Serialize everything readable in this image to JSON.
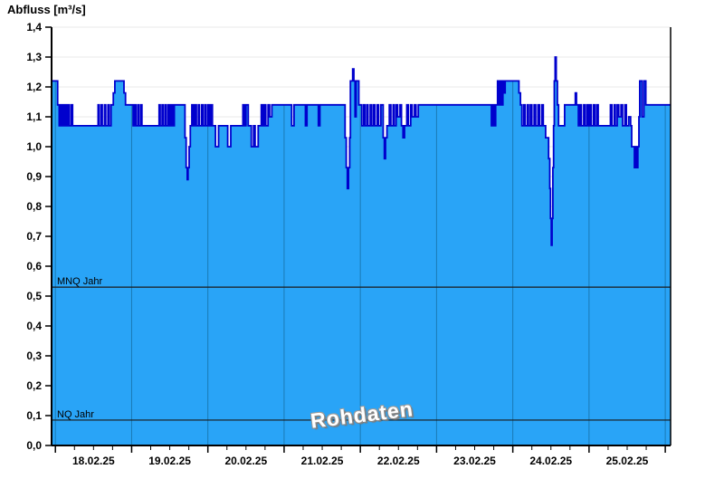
{
  "header": {
    "title": "Abfluss [m³/s]"
  },
  "watermark": {
    "text": "Rohdaten"
  },
  "colors": {
    "area_fill": "#29a4f7",
    "series_line": "#0000cd",
    "day_separator": "#1a7ab5",
    "gridline": "#e9e9e9",
    "axis": "#000000",
    "reference_line": "#1a1a1a",
    "tick_label": "#000000"
  },
  "chart_data": {
    "type": "area",
    "title": "Abfluss [m³/s]",
    "ylabel": "Abfluss [m³/s]",
    "unit": "m³/s",
    "ylim": [
      0,
      1.4
    ],
    "grid": "horizontal-only",
    "y_tick_values": [
      0,
      0.1,
      0.2,
      0.3,
      0.4,
      0.5,
      0.6,
      0.7,
      0.8,
      0.9,
      1.0,
      1.1,
      1.2,
      1.3,
      1.4
    ],
    "y_tick_labels": [
      "0,0",
      "0,1",
      "0,2",
      "0,3",
      "0,4",
      "0,5",
      "0,6",
      "0,7",
      "0,8",
      "0,9",
      "1,0",
      "1,1",
      "1,2",
      "1,3",
      "1,4"
    ],
    "x_axis": {
      "tick_labels": [
        "18.02.25",
        "19.02.25",
        "20.02.25",
        "21.02.25",
        "22.02.25",
        "23.02.25",
        "24.02.25",
        "25.02.25"
      ],
      "days": 8,
      "minor_ticks_per_day": 4,
      "range_days": [
        -0.05,
        8.07
      ]
    },
    "reference_lines": [
      {
        "label": "MNQ Jahr",
        "value": 0.53
      },
      {
        "label": "NQ Jahr",
        "value": 0.085
      }
    ],
    "series": [
      {
        "name": "Abfluss Rohdaten",
        "points": [
          [
            -0.05,
            1.22
          ],
          [
            0.03,
            1.14
          ],
          [
            0.05,
            1.07
          ],
          [
            0.07,
            1.14
          ],
          [
            0.085,
            1.07
          ],
          [
            0.1,
            1.14
          ],
          [
            0.115,
            1.07
          ],
          [
            0.135,
            1.14
          ],
          [
            0.15,
            1.07
          ],
          [
            0.17,
            1.14
          ],
          [
            0.185,
            1.07
          ],
          [
            0.21,
            1.14
          ],
          [
            0.225,
            1.07
          ],
          [
            0.56,
            1.14
          ],
          [
            0.575,
            1.07
          ],
          [
            0.6,
            1.14
          ],
          [
            0.615,
            1.07
          ],
          [
            0.645,
            1.14
          ],
          [
            0.66,
            1.07
          ],
          [
            0.69,
            1.14
          ],
          [
            0.705,
            1.07
          ],
          [
            0.73,
            1.14
          ],
          [
            0.76,
            1.18
          ],
          [
            0.78,
            1.22
          ],
          [
            0.9,
            1.18
          ],
          [
            0.92,
            1.14
          ],
          [
            1.02,
            1.07
          ],
          [
            1.04,
            1.14
          ],
          [
            1.055,
            1.07
          ],
          [
            1.08,
            1.14
          ],
          [
            1.095,
            1.07
          ],
          [
            1.12,
            1.14
          ],
          [
            1.135,
            1.07
          ],
          [
            1.36,
            1.14
          ],
          [
            1.375,
            1.07
          ],
          [
            1.4,
            1.14
          ],
          [
            1.415,
            1.07
          ],
          [
            1.44,
            1.14
          ],
          [
            1.455,
            1.07
          ],
          [
            1.48,
            1.14
          ],
          [
            1.5,
            1.07
          ],
          [
            1.52,
            1.14
          ],
          [
            1.54,
            1.07
          ],
          [
            1.56,
            1.14
          ],
          [
            1.7,
            1.03
          ],
          [
            1.715,
            0.93
          ],
          [
            1.73,
            0.89
          ],
          [
            1.74,
            0.93
          ],
          [
            1.755,
            1.0
          ],
          [
            1.77,
            1.07
          ],
          [
            1.79,
            1.14
          ],
          [
            1.81,
            1.07
          ],
          [
            1.83,
            1.14
          ],
          [
            1.85,
            1.07
          ],
          [
            1.875,
            1.14
          ],
          [
            1.89,
            1.07
          ],
          [
            1.92,
            1.14
          ],
          [
            1.935,
            1.07
          ],
          [
            1.96,
            1.14
          ],
          [
            1.975,
            1.07
          ],
          [
            2.0,
            1.14
          ],
          [
            2.02,
            1.07
          ],
          [
            2.04,
            1.14
          ],
          [
            2.06,
            1.07
          ],
          [
            2.1,
            1.0
          ],
          [
            2.14,
            1.07
          ],
          [
            2.26,
            1.0
          ],
          [
            2.3,
            1.07
          ],
          [
            2.46,
            1.14
          ],
          [
            2.48,
            1.07
          ],
          [
            2.5,
            1.14
          ],
          [
            2.53,
            1.07
          ],
          [
            2.57,
            1.0
          ],
          [
            2.6,
            1.07
          ],
          [
            2.62,
            1.0
          ],
          [
            2.66,
            1.07
          ],
          [
            2.7,
            1.14
          ],
          [
            2.72,
            1.07
          ],
          [
            2.74,
            1.14
          ],
          [
            2.76,
            1.07
          ],
          [
            2.79,
            1.14
          ],
          [
            2.81,
            1.1
          ],
          [
            2.84,
            1.14
          ],
          [
            3.1,
            1.07
          ],
          [
            3.13,
            1.14
          ],
          [
            3.28,
            1.07
          ],
          [
            3.3,
            1.14
          ],
          [
            3.45,
            1.07
          ],
          [
            3.47,
            1.14
          ],
          [
            3.8,
            1.03
          ],
          [
            3.815,
            0.93
          ],
          [
            3.83,
            0.86
          ],
          [
            3.845,
            0.93
          ],
          [
            3.86,
            1.03
          ],
          [
            3.87,
            1.22
          ],
          [
            3.9,
            1.26
          ],
          [
            3.915,
            1.22
          ],
          [
            3.93,
            1.1
          ],
          [
            3.945,
            1.22
          ],
          [
            3.98,
            1.14
          ],
          [
            4.02,
            1.07
          ],
          [
            4.045,
            1.14
          ],
          [
            4.06,
            1.07
          ],
          [
            4.085,
            1.14
          ],
          [
            4.1,
            1.07
          ],
          [
            4.13,
            1.14
          ],
          [
            4.145,
            1.07
          ],
          [
            4.17,
            1.14
          ],
          [
            4.19,
            1.07
          ],
          [
            4.22,
            1.14
          ],
          [
            4.24,
            1.07
          ],
          [
            4.27,
            1.14
          ],
          [
            4.3,
            1.03
          ],
          [
            4.315,
            0.96
          ],
          [
            4.33,
            1.03
          ],
          [
            4.35,
            1.07
          ],
          [
            4.38,
            1.14
          ],
          [
            4.4,
            1.07
          ],
          [
            4.43,
            1.14
          ],
          [
            4.445,
            1.07
          ],
          [
            4.47,
            1.14
          ],
          [
            4.49,
            1.1
          ],
          [
            4.52,
            1.14
          ],
          [
            4.54,
            1.07
          ],
          [
            4.56,
            1.03
          ],
          [
            4.58,
            1.07
          ],
          [
            4.61,
            1.14
          ],
          [
            4.63,
            1.07
          ],
          [
            4.66,
            1.14
          ],
          [
            4.68,
            1.1
          ],
          [
            4.71,
            1.14
          ],
          [
            4.73,
            1.1
          ],
          [
            4.76,
            1.14
          ],
          [
            5.72,
            1.07
          ],
          [
            5.735,
            1.14
          ],
          [
            5.755,
            1.07
          ],
          [
            5.775,
            1.14
          ],
          [
            5.8,
            1.22
          ],
          [
            5.815,
            1.14
          ],
          [
            5.835,
            1.22
          ],
          [
            5.85,
            1.14
          ],
          [
            5.87,
            1.22
          ],
          [
            5.885,
            1.18
          ],
          [
            5.9,
            1.22
          ],
          [
            6.08,
            1.18
          ],
          [
            6.1,
            1.14
          ],
          [
            6.12,
            1.07
          ],
          [
            6.145,
            1.14
          ],
          [
            6.16,
            1.07
          ],
          [
            6.19,
            1.14
          ],
          [
            6.205,
            1.07
          ],
          [
            6.23,
            1.14
          ],
          [
            6.25,
            1.07
          ],
          [
            6.28,
            1.14
          ],
          [
            6.3,
            1.07
          ],
          [
            6.33,
            1.14
          ],
          [
            6.35,
            1.07
          ],
          [
            6.38,
            1.14
          ],
          [
            6.4,
            1.07
          ],
          [
            6.43,
            1.03
          ],
          [
            6.47,
            0.96
          ],
          [
            6.485,
            0.86
          ],
          [
            6.495,
            0.76
          ],
          [
            6.505,
            0.67
          ],
          [
            6.515,
            0.76
          ],
          [
            6.525,
            0.93
          ],
          [
            6.535,
            1.07
          ],
          [
            6.545,
            1.22
          ],
          [
            6.555,
            1.3
          ],
          [
            6.57,
            1.22
          ],
          [
            6.585,
            1.14
          ],
          [
            6.6,
            1.07
          ],
          [
            6.68,
            1.14
          ],
          [
            6.82,
            1.18
          ],
          [
            6.835,
            1.14
          ],
          [
            6.86,
            1.07
          ],
          [
            6.88,
            1.14
          ],
          [
            6.9,
            1.07
          ],
          [
            6.93,
            1.14
          ],
          [
            6.945,
            1.07
          ],
          [
            6.97,
            1.14
          ],
          [
            6.99,
            1.07
          ],
          [
            7.01,
            1.14
          ],
          [
            7.03,
            1.07
          ],
          [
            7.06,
            1.14
          ],
          [
            7.075,
            1.07
          ],
          [
            7.1,
            1.14
          ],
          [
            7.12,
            1.07
          ],
          [
            7.28,
            1.14
          ],
          [
            7.3,
            1.07
          ],
          [
            7.33,
            1.14
          ],
          [
            7.345,
            1.07
          ],
          [
            7.37,
            1.14
          ],
          [
            7.39,
            1.1
          ],
          [
            7.42,
            1.14
          ],
          [
            7.44,
            1.07
          ],
          [
            7.47,
            1.14
          ],
          [
            7.49,
            1.07
          ],
          [
            7.52,
            1.1
          ],
          [
            7.545,
            1.07
          ],
          [
            7.56,
            1.0
          ],
          [
            7.595,
            0.93
          ],
          [
            7.61,
            1.0
          ],
          [
            7.625,
            0.93
          ],
          [
            7.64,
            1.0
          ],
          [
            7.655,
            1.1
          ],
          [
            7.665,
            1.22
          ],
          [
            7.695,
            1.1
          ],
          [
            7.72,
            1.22
          ],
          [
            7.745,
            1.14
          ],
          [
            8.07,
            1.14
          ]
        ]
      }
    ]
  }
}
